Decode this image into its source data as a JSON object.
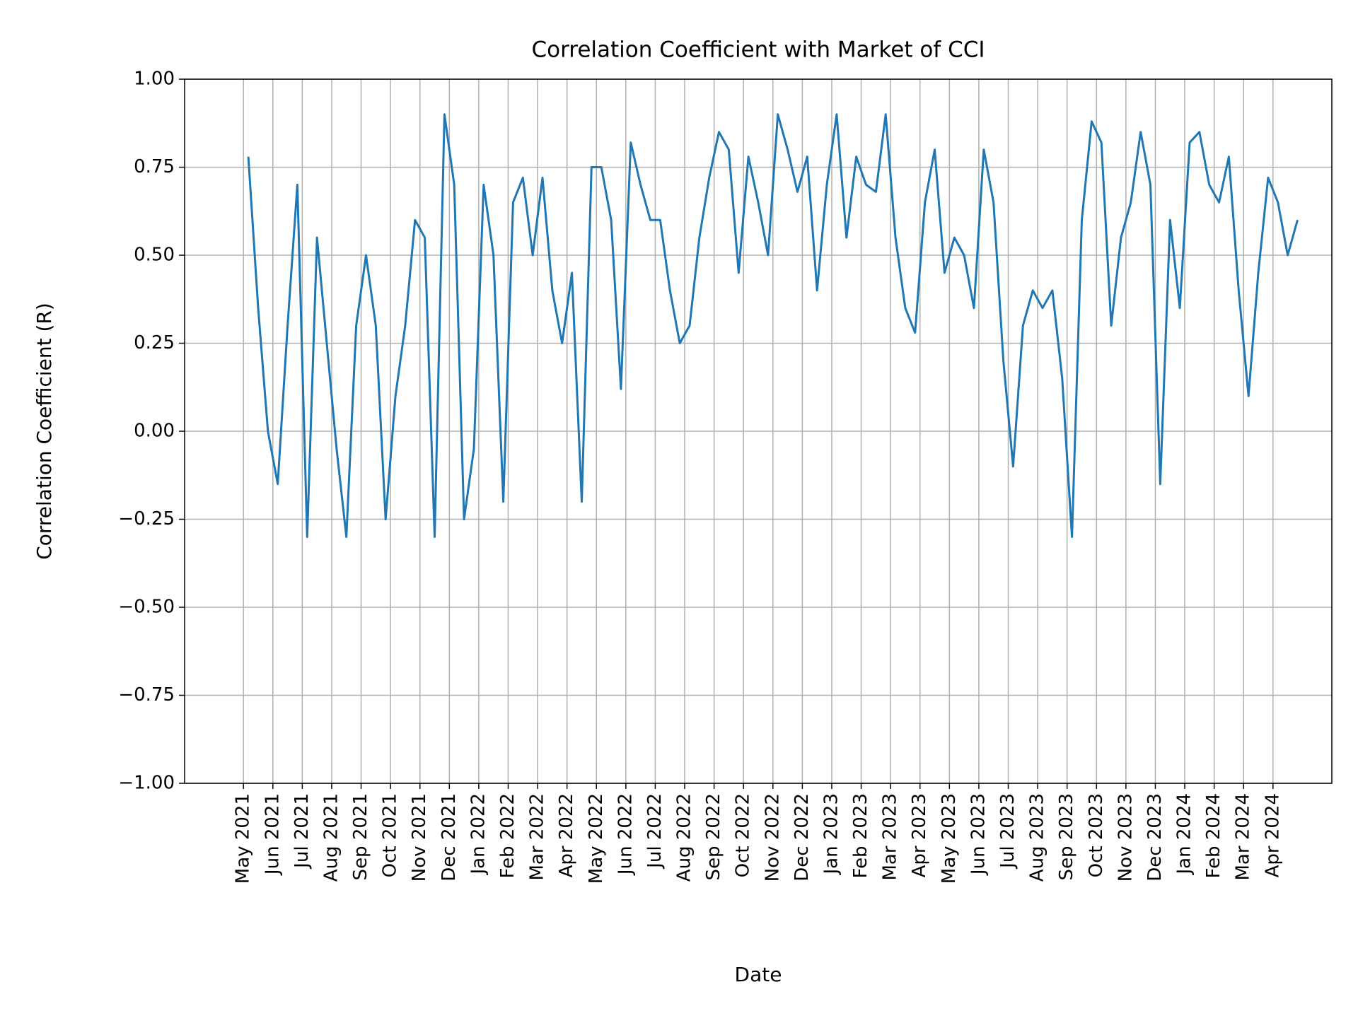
{
  "chart_data": {
    "type": "line",
    "title": "Correlation Coefficient with Market of CCI",
    "xlabel": "Date",
    "ylabel": "Correlation Coefficient (R)",
    "color": "#1f77b4",
    "grid": true,
    "x": [
      "2021-05",
      "2021-05",
      "2021-05",
      "2021-06",
      "2021-06",
      "2021-06",
      "2021-07",
      "2021-07",
      "2021-07",
      "2021-08",
      "2021-08",
      "2021-08",
      "2021-09",
      "2021-09",
      "2021-09",
      "2021-10",
      "2021-10",
      "2021-10",
      "2021-11",
      "2021-11",
      "2021-11",
      "2021-12",
      "2021-12",
      "2021-12",
      "2022-01",
      "2022-01",
      "2022-01",
      "2022-02",
      "2022-02",
      "2022-02",
      "2022-03",
      "2022-03",
      "2022-03",
      "2022-04",
      "2022-04",
      "2022-04",
      "2022-05",
      "2022-05",
      "2022-05",
      "2022-06",
      "2022-06",
      "2022-06",
      "2022-07",
      "2022-07",
      "2022-07",
      "2022-08",
      "2022-08",
      "2022-08",
      "2022-09",
      "2022-09",
      "2022-09",
      "2022-10",
      "2022-10",
      "2022-10",
      "2022-11",
      "2022-11",
      "2022-11",
      "2022-12",
      "2022-12",
      "2022-12",
      "2023-01",
      "2023-01",
      "2023-01",
      "2023-02",
      "2023-02",
      "2023-02",
      "2023-03",
      "2023-03",
      "2023-03",
      "2023-04",
      "2023-04",
      "2023-04",
      "2023-05",
      "2023-05",
      "2023-05",
      "2023-06",
      "2023-06",
      "2023-06",
      "2023-07",
      "2023-07",
      "2023-07",
      "2023-08",
      "2023-08",
      "2023-08",
      "2023-09",
      "2023-09",
      "2023-09",
      "2023-10",
      "2023-10",
      "2023-10",
      "2023-11",
      "2023-11",
      "2023-11",
      "2023-12",
      "2023-12",
      "2023-12",
      "2024-01",
      "2024-01",
      "2024-01",
      "2024-02",
      "2024-02",
      "2024-02",
      "2024-03",
      "2024-03",
      "2024-03",
      "2024-04",
      "2024-04",
      "2024-04"
    ],
    "values": [
      0.78,
      0.35,
      0.0,
      -0.15,
      0.3,
      0.7,
      -0.3,
      0.55,
      0.25,
      -0.05,
      -0.3,
      0.3,
      0.5,
      0.3,
      -0.25,
      0.1,
      0.3,
      0.6,
      0.55,
      -0.3,
      0.9,
      0.7,
      -0.25,
      -0.05,
      0.7,
      0.5,
      -0.2,
      0.65,
      0.72,
      0.5,
      0.72,
      0.4,
      0.25,
      0.45,
      -0.2,
      0.75,
      0.75,
      0.6,
      0.12,
      0.82,
      0.7,
      0.6,
      0.6,
      0.4,
      0.25,
      0.3,
      0.55,
      0.72,
      0.85,
      0.8,
      0.45,
      0.78,
      0.65,
      0.5,
      0.9,
      0.8,
      0.68,
      0.78,
      0.4,
      0.7,
      0.9,
      0.55,
      0.78,
      0.7,
      0.68,
      0.9,
      0.55,
      0.35,
      0.28,
      0.65,
      0.8,
      0.45,
      0.55,
      0.5,
      0.35,
      0.8,
      0.65,
      0.2,
      -0.1,
      0.3,
      0.4,
      0.35,
      0.4,
      0.15,
      -0.3,
      0.6,
      0.88,
      0.82,
      0.3,
      0.55,
      0.65,
      0.85,
      0.7,
      -0.15,
      0.6,
      0.35,
      0.82,
      0.85,
      0.7,
      0.65,
      0.78,
      0.4,
      0.1,
      0.45,
      0.72,
      0.65,
      0.5,
      0.6
    ],
    "xlim": [
      "2021-03",
      "2024-06"
    ],
    "xticks": [
      {
        "value": "2021-05",
        "label": "May 2021"
      },
      {
        "value": "2021-06",
        "label": "Jun 2021"
      },
      {
        "value": "2021-07",
        "label": "Jul 2021"
      },
      {
        "value": "2021-08",
        "label": "Aug 2021"
      },
      {
        "value": "2021-09",
        "label": "Sep 2021"
      },
      {
        "value": "2021-10",
        "label": "Oct 2021"
      },
      {
        "value": "2021-11",
        "label": "Nov 2021"
      },
      {
        "value": "2021-12",
        "label": "Dec 2021"
      },
      {
        "value": "2022-01",
        "label": "Jan 2022"
      },
      {
        "value": "2022-02",
        "label": "Feb 2022"
      },
      {
        "value": "2022-03",
        "label": "Mar 2022"
      },
      {
        "value": "2022-04",
        "label": "Apr 2022"
      },
      {
        "value": "2022-05",
        "label": "May 2022"
      },
      {
        "value": "2022-06",
        "label": "Jun 2022"
      },
      {
        "value": "2022-07",
        "label": "Jul 2022"
      },
      {
        "value": "2022-08",
        "label": "Aug 2022"
      },
      {
        "value": "2022-09",
        "label": "Sep 2022"
      },
      {
        "value": "2022-10",
        "label": "Oct 2022"
      },
      {
        "value": "2022-11",
        "label": "Nov 2022"
      },
      {
        "value": "2022-12",
        "label": "Dec 2022"
      },
      {
        "value": "2023-01",
        "label": "Jan 2023"
      },
      {
        "value": "2023-02",
        "label": "Feb 2023"
      },
      {
        "value": "2023-03",
        "label": "Mar 2023"
      },
      {
        "value": "2023-04",
        "label": "Apr 2023"
      },
      {
        "value": "2023-05",
        "label": "May 2023"
      },
      {
        "value": "2023-06",
        "label": "Jun 2023"
      },
      {
        "value": "2023-07",
        "label": "Jul 2023"
      },
      {
        "value": "2023-08",
        "label": "Aug 2023"
      },
      {
        "value": "2023-09",
        "label": "Sep 2023"
      },
      {
        "value": "2023-10",
        "label": "Oct 2023"
      },
      {
        "value": "2023-11",
        "label": "Nov 2023"
      },
      {
        "value": "2023-12",
        "label": "Dec 2023"
      },
      {
        "value": "2024-01",
        "label": "Jan 2024"
      },
      {
        "value": "2024-02",
        "label": "Feb 2024"
      },
      {
        "value": "2024-03",
        "label": "Mar 2024"
      },
      {
        "value": "2024-04",
        "label": "Apr 2024"
      }
    ],
    "ylim": [
      -1,
      1
    ],
    "yticks": [
      {
        "value": -1,
        "label": "−1.00"
      },
      {
        "value": -0.75,
        "label": "−0.75"
      },
      {
        "value": -0.5,
        "label": "−0.50"
      },
      {
        "value": -0.25,
        "label": "−0.25"
      },
      {
        "value": 0,
        "label": "0.00"
      },
      {
        "value": 0.25,
        "label": "0.25"
      },
      {
        "value": 0.5,
        "label": "0.50"
      },
      {
        "value": 0.75,
        "label": "0.75"
      },
      {
        "value": 1,
        "label": "1.00"
      }
    ]
  }
}
